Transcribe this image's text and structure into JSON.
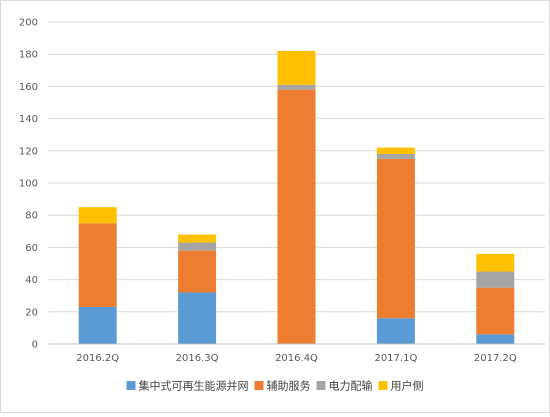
{
  "chart_data": {
    "type": "bar",
    "stacked": true,
    "categories": [
      "2016.2Q",
      "2016.3Q",
      "2016.4Q",
      "2017.1Q",
      "2017.2Q"
    ],
    "series": [
      {
        "name": "集中式可再生能源并网",
        "color": "#5B9BD5",
        "values": [
          23,
          32,
          0,
          16,
          6
        ]
      },
      {
        "name": "辅助服务",
        "color": "#ED7D31",
        "values": [
          52,
          26,
          158,
          99,
          29
        ]
      },
      {
        "name": "电力配输",
        "color": "#A5A5A5",
        "values": [
          0,
          5,
          3,
          3,
          10
        ]
      },
      {
        "name": "用户侧",
        "color": "#FFC000",
        "values": [
          10,
          5,
          21,
          4,
          11
        ]
      }
    ],
    "ylim": [
      0,
      200
    ],
    "yticks": [
      0,
      20,
      40,
      60,
      80,
      100,
      120,
      140,
      160,
      180,
      200
    ],
    "grid": true,
    "legend_position": "bottom"
  }
}
